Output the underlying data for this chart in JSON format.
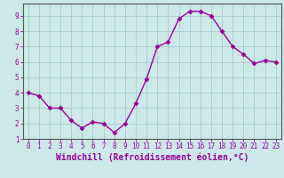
{
  "x": [
    0,
    1,
    2,
    3,
    4,
    5,
    6,
    7,
    8,
    9,
    10,
    11,
    12,
    13,
    14,
    15,
    16,
    17,
    18,
    19,
    20,
    21,
    22,
    23
  ],
  "y": [
    4.0,
    3.8,
    3.0,
    3.0,
    2.2,
    1.7,
    2.1,
    2.0,
    1.4,
    2.0,
    3.3,
    4.9,
    7.0,
    7.3,
    8.8,
    9.3,
    9.3,
    9.0,
    8.0,
    7.0,
    6.5,
    5.9,
    6.1,
    6.0
  ],
  "line_color": "#990099",
  "marker": "D",
  "marker_size": 2.5,
  "bg_color": "#cce8e8",
  "grid_color": "#aacccc",
  "axis_color": "#555555",
  "tick_color": "#990099",
  "xlabel": "Windchill (Refroidissement éolien,°C)",
  "xlabel_color": "#990099",
  "xlim": [
    -0.5,
    23.5
  ],
  "ylim": [
    1,
    9.8
  ],
  "yticks": [
    1,
    2,
    3,
    4,
    5,
    6,
    7,
    8,
    9
  ],
  "xticks": [
    0,
    1,
    2,
    3,
    4,
    5,
    6,
    7,
    8,
    9,
    10,
    11,
    12,
    13,
    14,
    15,
    16,
    17,
    18,
    19,
    20,
    21,
    22,
    23
  ],
  "tick_fontsize": 5.5,
  "xlabel_fontsize": 7.0,
  "linewidth": 1.0
}
